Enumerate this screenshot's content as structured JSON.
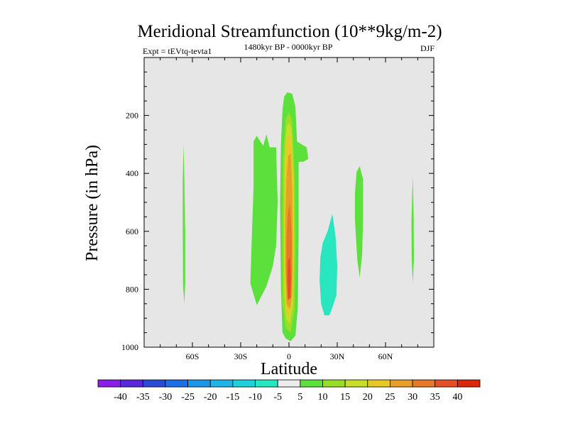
{
  "chart_data": {
    "type": "contour",
    "title": "Meridional Streamfunction (10**9kg/m-2)",
    "left_string": "Expt = tEVtq-tevta1",
    "center_string": "1480kyr BP - 0000kyr BP",
    "right_string": "DJF",
    "xlabel": "Latitude",
    "ylabel": "Pressure (in hPa)",
    "xlim": [
      -90,
      90
    ],
    "ylim": [
      1000,
      0
    ],
    "xticks": [
      {
        "value": -60,
        "label": "60S"
      },
      {
        "value": -30,
        "label": "30S"
      },
      {
        "value": 0,
        "label": "0"
      },
      {
        "value": 30,
        "label": "30N"
      },
      {
        "value": 60,
        "label": "60N"
      }
    ],
    "yticks": [
      {
        "value": 200,
        "label": "200"
      },
      {
        "value": 400,
        "label": "400"
      },
      {
        "value": 600,
        "label": "600"
      },
      {
        "value": 800,
        "label": "800"
      },
      {
        "value": 1000,
        "label": "1000"
      }
    ],
    "background_color": "#e6e6e6",
    "colorbar": {
      "labels": [
        "-40",
        "-35",
        "-30",
        "-25",
        "-20",
        "-15",
        "-10",
        "-5",
        "5",
        "10",
        "15",
        "20",
        "25",
        "30",
        "35",
        "40"
      ],
      "colors": [
        "#8a1ee6",
        "#5a28d8",
        "#2a4ad8",
        "#1e6ee8",
        "#1e96e8",
        "#1eb4e6",
        "#1ed2dc",
        "#28e6c0",
        "#ececec",
        "#5ce03c",
        "#98de28",
        "#c8de28",
        "#e6c828",
        "#e6a028",
        "#e67828",
        "#e65028",
        "#dc280a"
      ]
    },
    "regions": [
      {
        "name": "band-60s",
        "level": "5",
        "color": "#5ce03c",
        "points": [
          [
            -65.5,
            300
          ],
          [
            -65,
            420
          ],
          [
            -64.5,
            600
          ],
          [
            -64.5,
            780
          ],
          [
            -65,
            850
          ],
          [
            -65.8,
            790
          ],
          [
            -66,
            600
          ],
          [
            -66,
            420
          ]
        ]
      },
      {
        "name": "band-70n",
        "level": "5",
        "color": "#5ce03c",
        "points": [
          [
            77,
            410
          ],
          [
            77.5,
            560
          ],
          [
            77.6,
            700
          ],
          [
            77,
            780
          ],
          [
            76.3,
            700
          ],
          [
            76.1,
            560
          ]
        ]
      },
      {
        "name": "region-left",
        "level": "5",
        "color": "#5ce03c",
        "points": [
          [
            -22,
            290
          ],
          [
            -20,
            270
          ],
          [
            -16,
            305
          ],
          [
            -14,
            265
          ],
          [
            -12,
            310
          ],
          [
            -8,
            310
          ],
          [
            -7,
            500
          ],
          [
            -8,
            650
          ],
          [
            -10,
            720
          ],
          [
            -14,
            790
          ],
          [
            -20,
            855
          ],
          [
            -24,
            780
          ],
          [
            -23,
            600
          ],
          [
            -22,
            450
          ]
        ]
      },
      {
        "name": "region-central",
        "level": "5",
        "color": "#5ce03c",
        "points": [
          [
            -4,
            180
          ],
          [
            -3,
            135
          ],
          [
            -1,
            120
          ],
          [
            2,
            125
          ],
          [
            4,
            170
          ],
          [
            5,
            290
          ],
          [
            11,
            310
          ],
          [
            12,
            350
          ],
          [
            9,
            360
          ],
          [
            6,
            360
          ],
          [
            6,
            600
          ],
          [
            5.5,
            860
          ],
          [
            4,
            960
          ],
          [
            1,
            980
          ],
          [
            -2,
            970
          ],
          [
            -4,
            950
          ],
          [
            -5,
            800
          ],
          [
            -5.5,
            500
          ],
          [
            -5,
            300
          ]
        ]
      },
      {
        "name": "region-central-10",
        "level": "10",
        "color": "#98de28",
        "points": [
          [
            -2,
            210
          ],
          [
            0,
            190
          ],
          [
            2,
            215
          ],
          [
            3.5,
            400
          ],
          [
            4,
            650
          ],
          [
            3.5,
            870
          ],
          [
            1,
            950
          ],
          [
            -2,
            935
          ],
          [
            -4,
            850
          ],
          [
            -4,
            600
          ],
          [
            -3.8,
            350
          ]
        ]
      },
      {
        "name": "region-central-15",
        "level": "15",
        "color": "#c8de28",
        "points": [
          [
            -1.5,
            240
          ],
          [
            0,
            225
          ],
          [
            1.5,
            245
          ],
          [
            3,
            420
          ],
          [
            3.2,
            650
          ],
          [
            2.5,
            850
          ],
          [
            0.5,
            920
          ],
          [
            -1.8,
            900
          ],
          [
            -3,
            800
          ],
          [
            -3,
            560
          ],
          [
            -2.8,
            360
          ]
        ]
      },
      {
        "name": "region-central-20",
        "level": "20",
        "color": "#e6c828",
        "points": [
          [
            -1,
            275
          ],
          [
            0.5,
            265
          ],
          [
            2,
            330
          ],
          [
            2.6,
            500
          ],
          [
            2.8,
            700
          ],
          [
            2,
            850
          ],
          [
            0,
            895
          ],
          [
            -1.8,
            870
          ],
          [
            -2.6,
            760
          ],
          [
            -2.6,
            560
          ],
          [
            -2.2,
            380
          ]
        ]
      },
      {
        "name": "region-central-25",
        "level": "25",
        "color": "#e6a028",
        "points": [
          [
            -0.5,
            340
          ],
          [
            1,
            330
          ],
          [
            2,
            450
          ],
          [
            2.3,
            640
          ],
          [
            2,
            820
          ],
          [
            0.5,
            870
          ],
          [
            -1.5,
            850
          ],
          [
            -2.2,
            720
          ],
          [
            -2.2,
            560
          ],
          [
            -1.6,
            420
          ]
        ]
      },
      {
        "name": "region-central-30",
        "level": "30",
        "color": "#e67828",
        "points": [
          [
            -0.8,
            540
          ],
          [
            0.5,
            500
          ],
          [
            1.6,
            600
          ],
          [
            1.8,
            750
          ],
          [
            1.2,
            830
          ],
          [
            -0.8,
            840
          ],
          [
            -1.6,
            760
          ],
          [
            -1.6,
            640
          ]
        ]
      },
      {
        "name": "region-central-35",
        "level": "35",
        "color": "#e65028",
        "points": [
          [
            -0.6,
            700
          ],
          [
            0.6,
            690
          ],
          [
            1.2,
            760
          ],
          [
            0.8,
            830
          ],
          [
            -0.6,
            835
          ],
          [
            -1,
            760
          ]
        ]
      },
      {
        "name": "region-nh-negative",
        "level": "-5",
        "color": "#28e6c0",
        "points": [
          [
            27,
            540
          ],
          [
            29,
            620
          ],
          [
            30,
            720
          ],
          [
            29.5,
            820
          ],
          [
            26.5,
            870
          ],
          [
            25,
            890
          ],
          [
            22,
            890
          ],
          [
            20,
            850
          ],
          [
            19,
            770
          ],
          [
            19.5,
            690
          ],
          [
            21,
            640
          ],
          [
            24,
            600
          ]
        ]
      },
      {
        "name": "region-nh-40",
        "level": "5",
        "color": "#5ce03c",
        "points": [
          [
            42,
            395
          ],
          [
            44,
            375
          ],
          [
            46,
            420
          ],
          [
            46,
            560
          ],
          [
            45.5,
            680
          ],
          [
            44,
            760
          ],
          [
            42.5,
            700
          ],
          [
            41,
            560
          ],
          [
            41,
            470
          ]
        ]
      }
    ]
  }
}
